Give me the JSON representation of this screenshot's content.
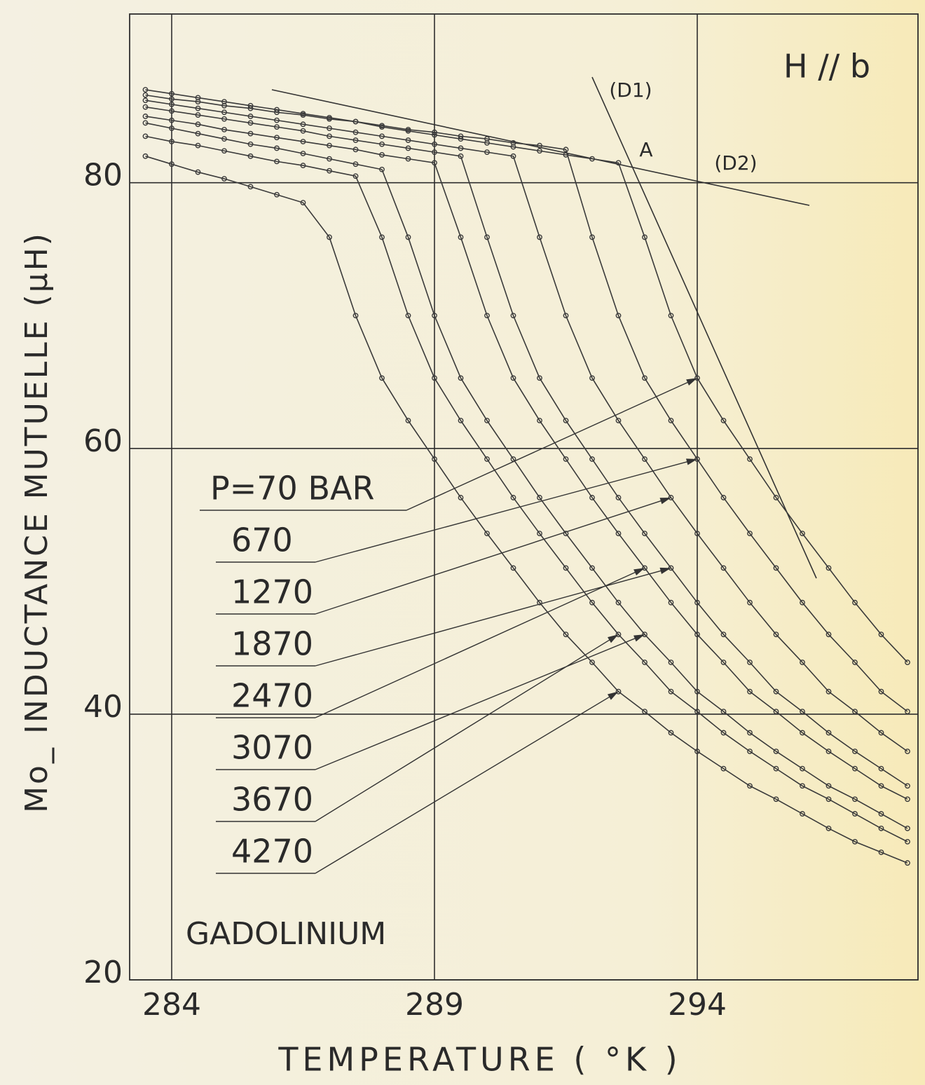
{
  "chart_data": {
    "type": "line",
    "title": "H // b",
    "xlabel": "TEMPERATURE ( °K )",
    "ylabel": "Mo_ INDUCTANCE MUTUELLE (µH)",
    "annotations": [
      "(D1)",
      "(D2)",
      "A",
      "GADOLINIUM"
    ],
    "x": [
      283.5,
      284,
      284.5,
      285,
      285.5,
      286,
      286.5,
      287,
      287.5,
      288,
      288.5,
      289,
      289.5,
      290,
      290.5,
      291,
      291.5,
      292,
      292.5,
      293,
      293.5,
      294,
      294.5,
      295,
      295.5,
      296,
      296.5,
      297,
      297.5,
      298
    ],
    "xlim": [
      283.2,
      298.2
    ],
    "xticks": [
      284,
      289,
      294
    ],
    "ylim": [
      20,
      92.7
    ],
    "yticks": [
      20,
      40,
      60,
      80
    ],
    "grid": true,
    "series": [
      {
        "name": "P=70 BAR",
        "color": "#3a3a3a",
        "values": [
          87,
          86.7,
          86.4,
          86.1,
          85.8,
          85.5,
          85.2,
          84.9,
          84.6,
          84.2,
          83.9,
          83.6,
          83.3,
          83,
          82.7,
          82.4,
          82.1,
          81.8,
          81.5,
          75.9,
          70,
          65.3,
          62.1,
          59.2,
          56.3,
          53.6,
          51,
          48.4,
          46,
          43.9
        ]
      },
      {
        "name": "670",
        "color": "#3a3a3a",
        "values": [
          86.6,
          86.3,
          86.1,
          85.8,
          85.6,
          85.3,
          85.1,
          84.8,
          84.6,
          84.3,
          84.0,
          83.8,
          83.5,
          83.3,
          83.0,
          82.8,
          82.5,
          75.9,
          70,
          65.3,
          62.1,
          59.2,
          56.3,
          53.6,
          51,
          48.4,
          46,
          43.9,
          41.7,
          40.2
        ]
      },
      {
        "name": "1270",
        "color": "#3a3a3a",
        "values": [
          86.2,
          85.9,
          85.6,
          85.3,
          85,
          84.7,
          84.4,
          84.1,
          83.8,
          83.5,
          83.2,
          82.9,
          82.6,
          82.3,
          82,
          75.9,
          70,
          65.3,
          62.1,
          59.2,
          56.3,
          53.6,
          51,
          48.4,
          46,
          43.9,
          41.7,
          40.2,
          38.6,
          37.2
        ]
      },
      {
        "name": "1870",
        "color": "#3a3a3a",
        "values": [
          85.7,
          85.4,
          85.1,
          84.8,
          84.5,
          84.2,
          83.9,
          83.5,
          83.2,
          82.9,
          82.6,
          82.3,
          82,
          75.9,
          70,
          65.3,
          62.1,
          59.2,
          56.3,
          53.6,
          51,
          48.4,
          46,
          43.9,
          41.7,
          40.2,
          38.6,
          37.2,
          35.9,
          34.6
        ]
      },
      {
        "name": "2470",
        "color": "#3a3a3a",
        "values": [
          85,
          84.7,
          84.4,
          84,
          83.7,
          83.4,
          83.1,
          82.8,
          82.5,
          82.1,
          81.8,
          81.5,
          75.9,
          70,
          65.3,
          62.1,
          59.2,
          56.3,
          53.6,
          51,
          48.4,
          46,
          43.9,
          41.7,
          40.2,
          38.6,
          37.2,
          35.9,
          34.6,
          33.6
        ]
      },
      {
        "name": "3070",
        "color": "#3a3a3a",
        "values": [
          84.5,
          84.1,
          83.7,
          83.3,
          82.9,
          82.6,
          82.2,
          81.8,
          81.4,
          81,
          75.9,
          70,
          65.3,
          62.1,
          59.2,
          56.3,
          53.6,
          51,
          48.4,
          46,
          43.9,
          41.7,
          40.2,
          38.6,
          37.2,
          35.9,
          34.6,
          33.6,
          32.5,
          31.4
        ]
      },
      {
        "name": "3670",
        "color": "#3a3a3a",
        "values": [
          83.5,
          83.1,
          82.8,
          82.4,
          82,
          81.6,
          81.3,
          80.9,
          80.5,
          75.9,
          70,
          65.3,
          62.1,
          59.2,
          56.3,
          53.6,
          51,
          48.4,
          46,
          43.9,
          41.7,
          40.2,
          38.6,
          37.2,
          35.9,
          34.6,
          33.6,
          32.5,
          31.4,
          30.4
        ]
      },
      {
        "name": "4270",
        "color": "#3a3a3a",
        "values": [
          82,
          81.4,
          80.8,
          80.3,
          79.7,
          79.1,
          78.5,
          75.9,
          70,
          65.3,
          62.1,
          59.2,
          56.3,
          53.6,
          51,
          48.4,
          46,
          43.9,
          41.7,
          40.2,
          38.6,
          37.2,
          35.9,
          34.6,
          33.6,
          32.5,
          31.4,
          30.4,
          29.6,
          28.8
        ]
      }
    ]
  }
}
